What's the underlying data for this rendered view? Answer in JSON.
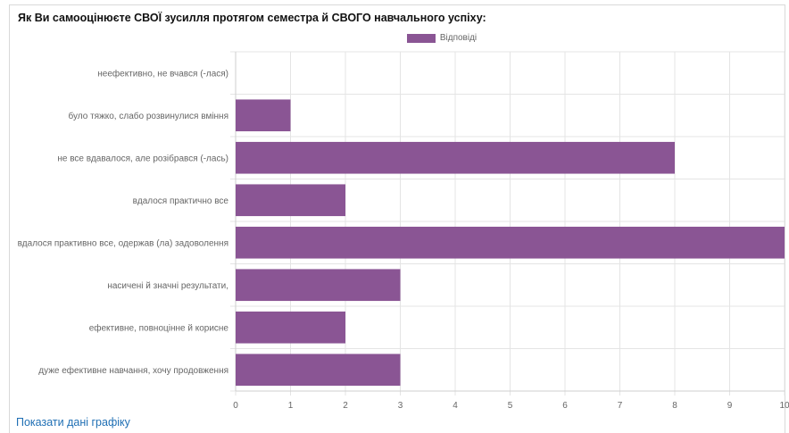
{
  "question": "Як Ви самооцінюєте СВОЇ зусилля протягом семестра й СВОГО навчального успіху:",
  "legend": {
    "label": "Відповіді",
    "color": "#8a5594"
  },
  "show_data_link": "Показати дані графіку",
  "chart_data": {
    "type": "bar",
    "orientation": "horizontal",
    "categories": [
      "неефективно, не вчався (-лася)",
      "було тяжко, слабо розвинулися вміння",
      "не все вдавалося, але розібрався (-лась)",
      "вдалося практично все",
      "вдалося практивно все, одержав (ла) задоволення",
      "насичені й значні результати,",
      "ефективне, повноцінне й корисне",
      "дуже ефективне навчання, хочу продовження"
    ],
    "series": [
      {
        "name": "Відповіді",
        "values": [
          0,
          1,
          8,
          2,
          10,
          3,
          2,
          3
        ],
        "color": "#8a5594"
      }
    ],
    "xlim": [
      0,
      10
    ],
    "xticks": [
      "0",
      "1",
      "2",
      "3",
      "4",
      "5",
      "6",
      "7",
      "8",
      "9",
      "10"
    ],
    "grid": true,
    "legend_position": "top"
  }
}
